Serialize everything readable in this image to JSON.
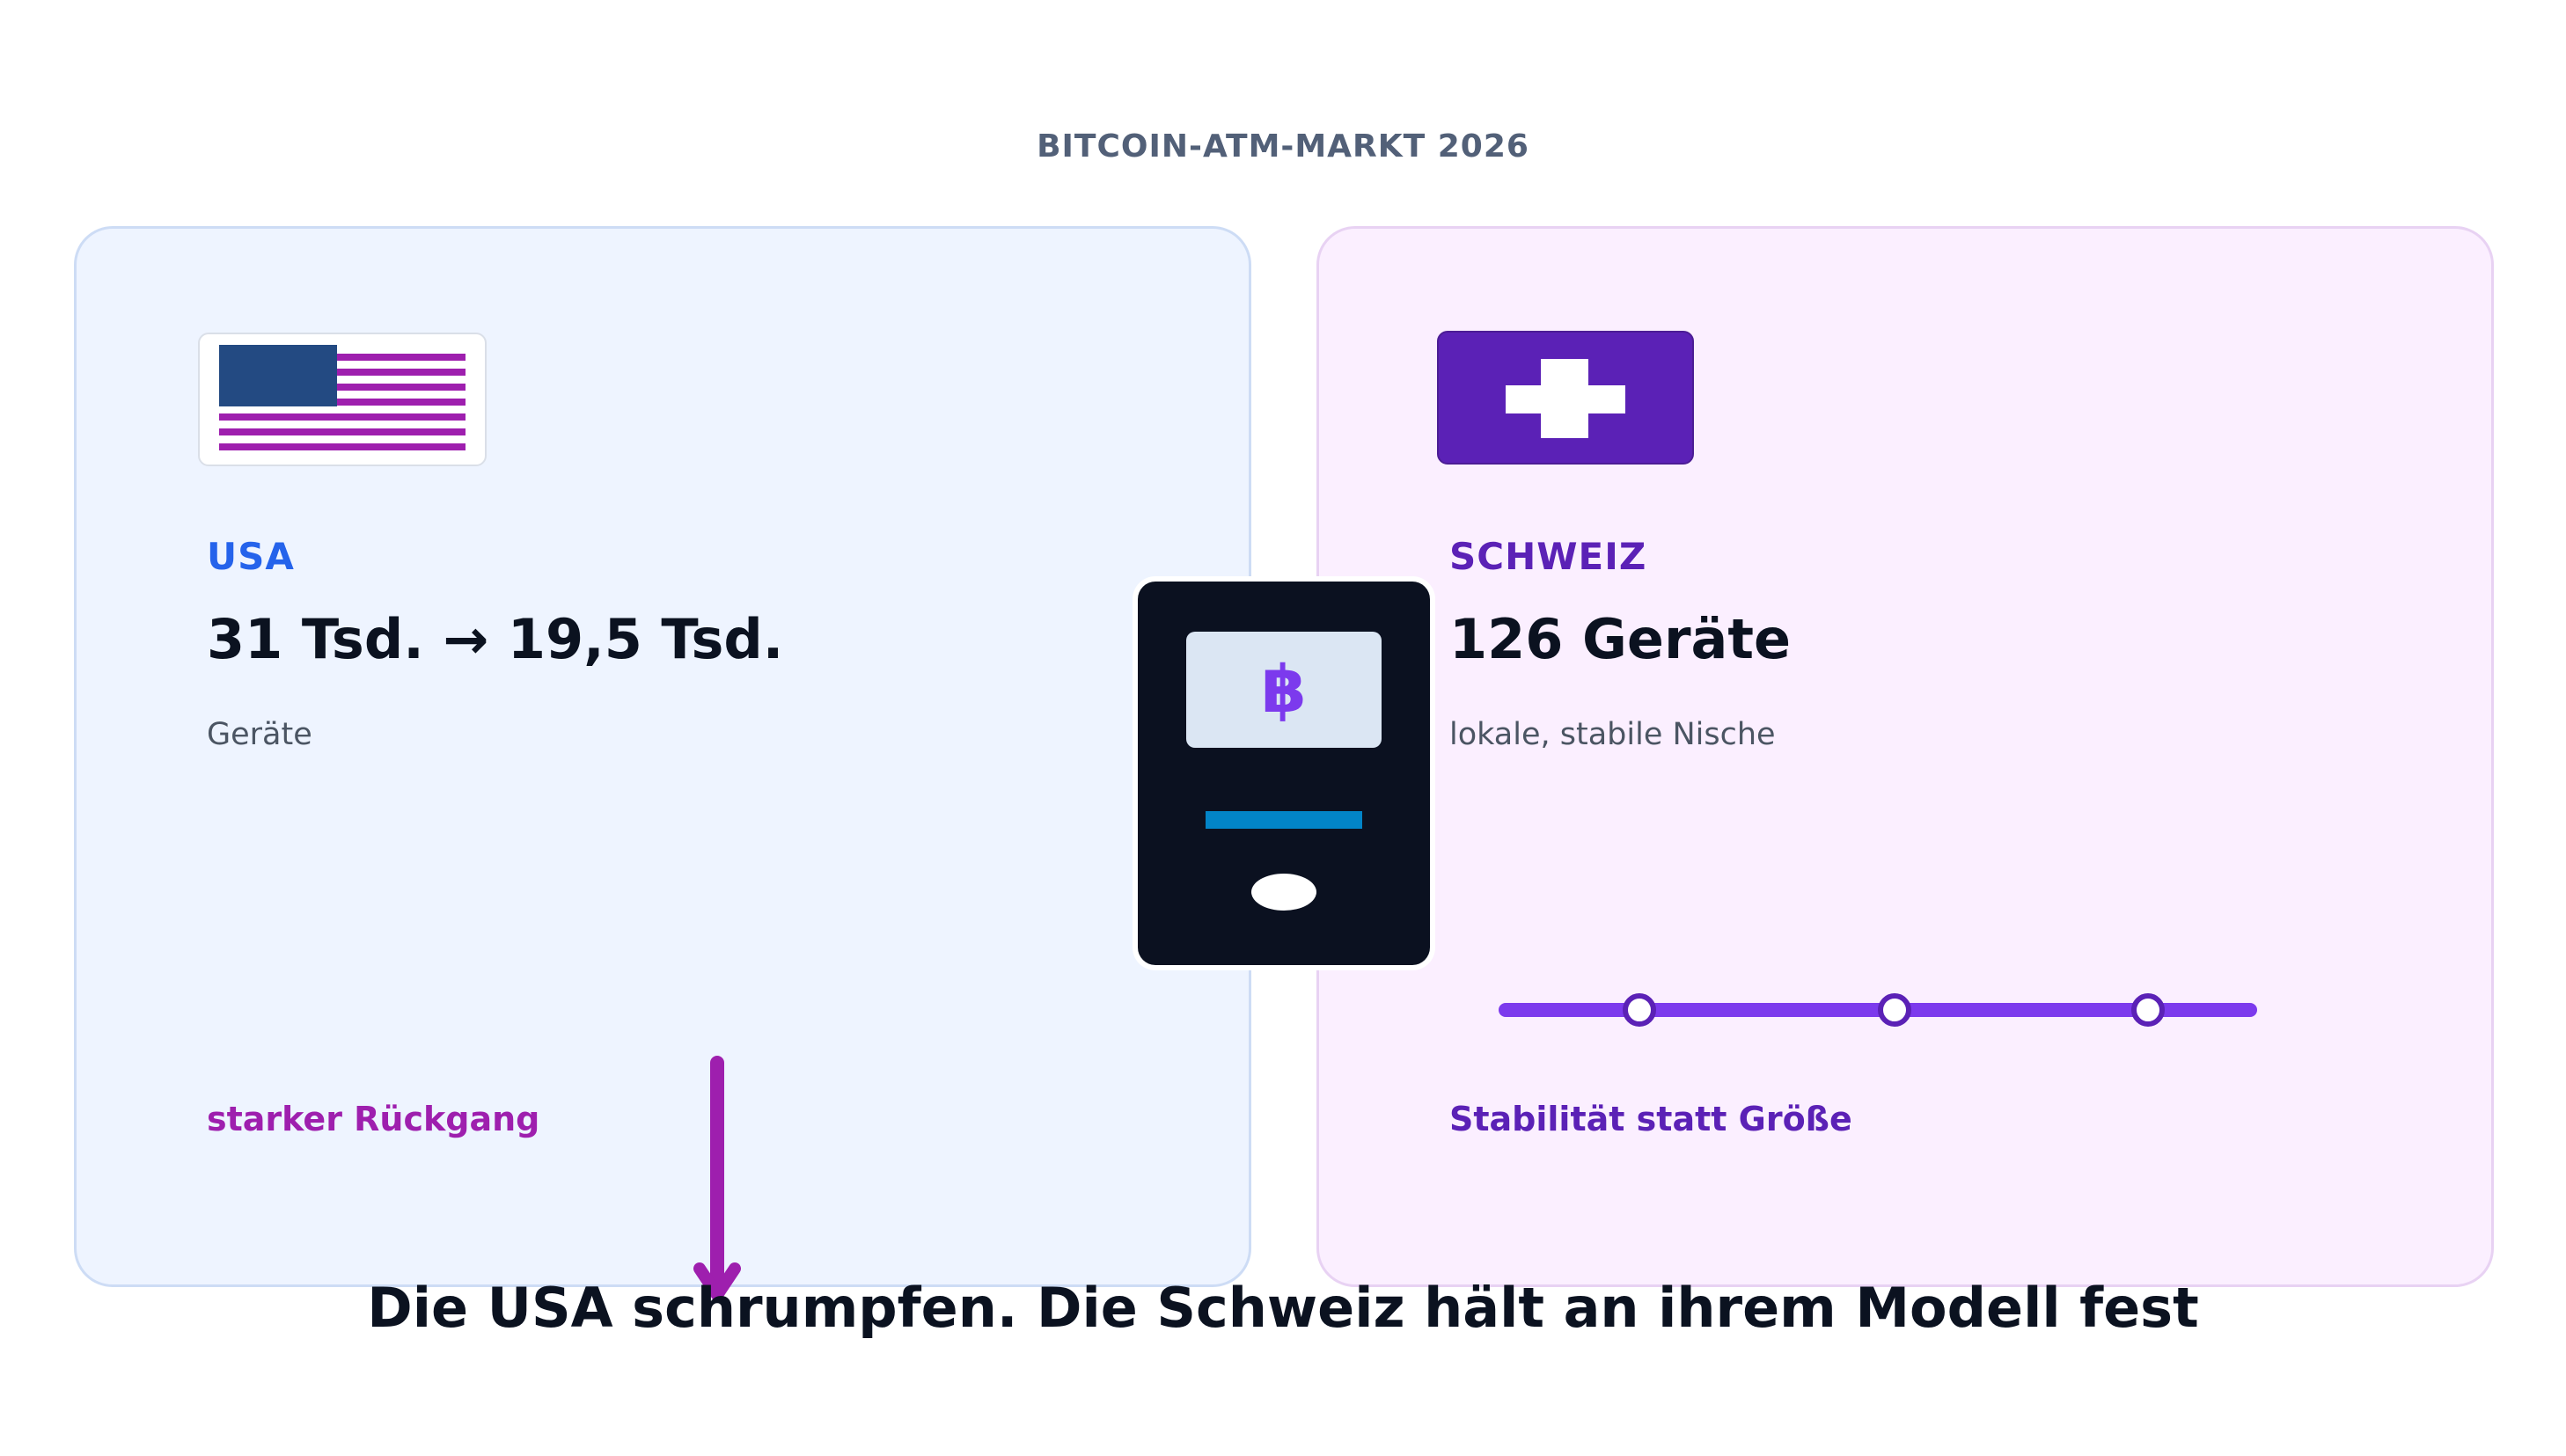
{
  "header": {
    "eyebrow": "BITCOIN-ATM-MARKT 2026"
  },
  "usa": {
    "flag_icon": "usa-flag-icon",
    "country": "USA",
    "figure": "31 Tsd.  →  19,5 Tsd.",
    "unit": "Geräte",
    "trend_icon": "down-arrow-icon",
    "note": "starker Rückgang",
    "colors": {
      "label": "#2563eb",
      "accent": "#9e1fae",
      "flag_canton": "#234a82",
      "background": "#eef4ff"
    }
  },
  "switzerland": {
    "flag_icon": "swiss-flag-icon",
    "country": "SCHWEIZ",
    "figure": "126 Geräte",
    "description": "lokale, stabile Nische",
    "trend_icon": "stable-timeline-icon",
    "note": "Stabilität statt Größe",
    "colors": {
      "label": "#5b21b6",
      "line": "#7c3aed",
      "background": "#fbefff"
    }
  },
  "center": {
    "icon": "bitcoin-atm-icon",
    "symbol": "฿",
    "colors": {
      "body": "#0b1120",
      "screen": "#dbe6f3",
      "slot": "#0284c7"
    }
  },
  "headline": "Die USA schrumpfen. Die Schweiz hält an ihrem Modell fest"
}
